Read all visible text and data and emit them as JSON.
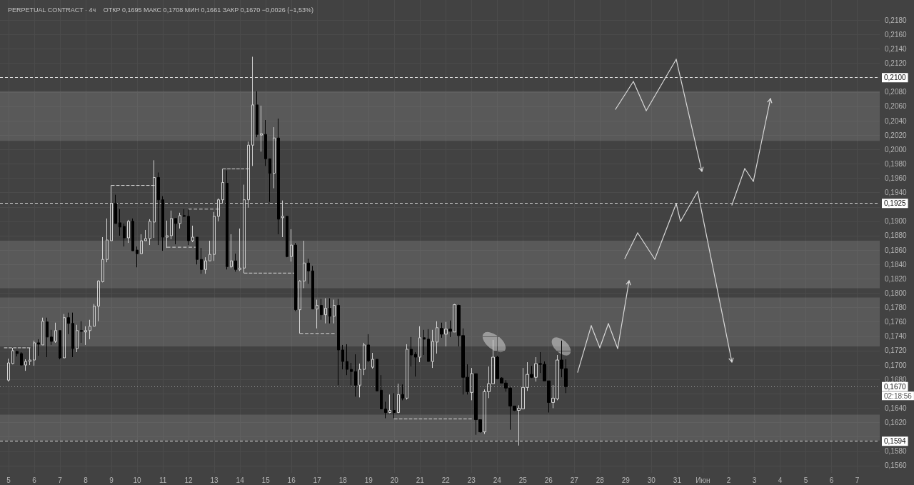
{
  "chart_data": {
    "type": "candlestick",
    "title": "PERPETUAL CONTRACT · 4ч",
    "subtitle": "ОТКР 0,1695 МАКС 0,1708 МИН 0,1661 ЗАКР 0,1670 −0,0026 (−1,53%)",
    "annotations": [
      "02:18:56"
    ],
    "x": [
      "--05-05T00:00",
      "--05-05T04:00",
      "--05-05T08:00",
      "--05-05T12:00",
      "--05-05T16:00",
      "--05-05T20:00",
      "--05-06T00:00",
      "--05-06T04:00",
      "--05-06T08:00",
      "--05-06T12:00",
      "--05-06T16:00",
      "--05-06T20:00",
      "--05-07T00:00",
      "--05-07T04:00",
      "--05-07T08:00",
      "--05-07T12:00",
      "--05-07T16:00",
      "--05-07T20:00",
      "--05-08T00:00",
      "--05-08T04:00",
      "--05-08T08:00",
      "--05-08T12:00",
      "--05-08T16:00",
      "--05-08T20:00",
      "--05-09T00:00",
      "--05-09T04:00",
      "--05-09T08:00",
      "--05-09T12:00",
      "--05-09T16:00",
      "--05-09T20:00",
      "--05-10T00:00",
      "--05-10T04:00",
      "--05-10T08:00",
      "--05-10T12:00",
      "--05-10T16:00",
      "--05-10T20:00",
      "--05-11T00:00",
      "--05-11T04:00",
      "--05-11T08:00",
      "--05-11T12:00",
      "--05-11T16:00",
      "--05-11T20:00",
      "--05-12T00:00",
      "--05-12T04:00",
      "--05-12T08:00",
      "--05-12T12:00",
      "--05-12T16:00",
      "--05-12T20:00",
      "--05-13T00:00",
      "--05-13T04:00",
      "--05-13T08:00",
      "--05-13T12:00",
      "--05-13T16:00",
      "--05-13T20:00",
      "--05-14T00:00",
      "--05-14T04:00",
      "--05-14T08:00",
      "--05-14T12:00",
      "--05-14T16:00",
      "--05-14T20:00",
      "--05-15T00:00",
      "--05-15T04:00",
      "--05-15T08:00",
      "--05-15T12:00",
      "--05-15T16:00",
      "--05-15T20:00",
      "--05-16T00:00",
      "--05-16T04:00",
      "--05-16T08:00",
      "--05-16T12:00",
      "--05-16T16:00",
      "--05-16T20:00",
      "--05-17T00:00",
      "--05-17T04:00",
      "--05-17T08:00",
      "--05-17T12:00",
      "--05-17T16:00",
      "--05-17T20:00",
      "--05-18T00:00",
      "--05-18T04:00",
      "--05-18T08:00",
      "--05-18T12:00",
      "--05-18T16:00",
      "--05-18T20:00",
      "--05-19T00:00",
      "--05-19T04:00",
      "--05-19T08:00",
      "--05-19T12:00",
      "--05-19T16:00",
      "--05-19T20:00",
      "--05-20T00:00",
      "--05-20T04:00",
      "--05-20T08:00",
      "--05-20T12:00",
      "--05-20T16:00",
      "--05-20T20:00",
      "--05-21T00:00",
      "--05-21T04:00",
      "--05-21T08:00",
      "--05-21T12:00",
      "--05-21T16:00",
      "--05-21T20:00",
      "--05-22T00:00",
      "--05-22T04:00",
      "--05-22T08:00",
      "--05-22T12:00",
      "--05-22T16:00",
      "--05-22T20:00",
      "--05-23T00:00",
      "--05-23T04:00",
      "--05-23T08:00",
      "--05-23T12:00",
      "--05-23T16:00",
      "--05-23T20:00",
      "--05-24T00:00",
      "--05-24T04:00",
      "--05-24T08:00",
      "--05-24T12:00",
      "--05-24T16:00",
      "--05-24T20:00",
      "--05-25T00:00",
      "--05-25T04:00",
      "--05-25T08:00",
      "--05-25T12:00",
      "--05-25T16:00",
      "--05-25T20:00",
      "--05-26T00:00",
      "--05-26T04:00",
      "--05-26T08:00",
      "--05-26T12:00",
      "--05-26T16:00"
    ],
    "ohlc": [
      [
        0.1679,
        0.1709,
        0.1677,
        0.1703
      ],
      [
        0.1702,
        0.1724,
        0.1701,
        0.172
      ],
      [
        0.1719,
        0.172,
        0.1712,
        0.1716
      ],
      [
        0.1716,
        0.1718,
        0.17,
        0.17
      ],
      [
        0.17,
        0.1708,
        0.1692,
        0.1705
      ],
      [
        0.1705,
        0.1724,
        0.17,
        0.1707
      ],
      [
        0.1707,
        0.1734,
        0.1699,
        0.1731
      ],
      [
        0.1731,
        0.1736,
        0.1713,
        0.1729
      ],
      [
        0.1728,
        0.1766,
        0.1728,
        0.1761
      ],
      [
        0.176,
        0.1766,
        0.1711,
        0.1739
      ],
      [
        0.1739,
        0.1749,
        0.1728,
        0.1733
      ],
      [
        0.1733,
        0.1759,
        0.1731,
        0.1748
      ],
      [
        0.1748,
        0.1748,
        0.1708,
        0.171
      ],
      [
        0.171,
        0.1771,
        0.171,
        0.1766
      ],
      [
        0.1766,
        0.1773,
        0.1743,
        0.1758
      ],
      [
        0.1758,
        0.1773,
        0.1711,
        0.1723
      ],
      [
        0.1723,
        0.1756,
        0.1718,
        0.1748
      ],
      [
        0.1748,
        0.1761,
        0.1731,
        0.1747
      ],
      [
        0.1746,
        0.1754,
        0.1728,
        0.1748
      ],
      [
        0.1748,
        0.1763,
        0.1736,
        0.1754
      ],
      [
        0.1754,
        0.1785,
        0.1754,
        0.1782
      ],
      [
        0.1782,
        0.1818,
        0.1761,
        0.1817
      ],
      [
        0.1816,
        0.1878,
        0.1815,
        0.1847
      ],
      [
        0.1847,
        0.1904,
        0.1843,
        0.1874
      ],
      [
        0.1873,
        0.195,
        0.1873,
        0.1925
      ],
      [
        0.1925,
        0.1937,
        0.1897,
        0.1897
      ],
      [
        0.1898,
        0.1917,
        0.188,
        0.1892
      ],
      [
        0.1893,
        0.1897,
        0.1865,
        0.1877
      ],
      [
        0.1877,
        0.1902,
        0.187,
        0.19
      ],
      [
        0.19,
        0.1904,
        0.1859,
        0.1859
      ],
      [
        0.186,
        0.1865,
        0.1836,
        0.1855
      ],
      [
        0.1855,
        0.1882,
        0.1855,
        0.1873
      ],
      [
        0.1873,
        0.1888,
        0.1873,
        0.1876
      ],
      [
        0.1876,
        0.1903,
        0.1867,
        0.19
      ],
      [
        0.1899,
        0.1985,
        0.1877,
        0.1961
      ],
      [
        0.1961,
        0.1968,
        0.1867,
        0.193
      ],
      [
        0.193,
        0.1935,
        0.1859,
        0.1878
      ],
      [
        0.1878,
        0.1901,
        0.1863,
        0.188
      ],
      [
        0.188,
        0.1915,
        0.1875,
        0.1904
      ],
      [
        0.1904,
        0.1904,
        0.1868,
        0.1897
      ],
      [
        0.1897,
        0.1912,
        0.189,
        0.1908
      ],
      [
        0.1908,
        0.1917,
        0.1906,
        0.1907
      ],
      [
        0.1907,
        0.1917,
        0.1867,
        0.1873
      ],
      [
        0.1873,
        0.1894,
        0.1871,
        0.1878
      ],
      [
        0.1878,
        0.1878,
        0.184,
        0.1847
      ],
      [
        0.1847,
        0.1863,
        0.1827,
        0.1833
      ],
      [
        0.1833,
        0.185,
        0.1827,
        0.1845
      ],
      [
        0.1845,
        0.1873,
        0.1845,
        0.1854
      ],
      [
        0.1854,
        0.1913,
        0.1845,
        0.1907
      ],
      [
        0.1907,
        0.1932,
        0.19,
        0.193
      ],
      [
        0.193,
        0.1973,
        0.1925,
        0.1954
      ],
      [
        0.1953,
        0.1971,
        0.1833,
        0.1837
      ],
      [
        0.1837,
        0.1882,
        0.1835,
        0.1845
      ],
      [
        0.1845,
        0.1855,
        0.183,
        0.1833
      ],
      [
        0.1833,
        0.189,
        0.1831,
        0.1835
      ],
      [
        0.1835,
        0.1951,
        0.1828,
        0.193
      ],
      [
        0.193,
        0.2011,
        0.1919,
        0.2006
      ],
      [
        0.2006,
        0.2129,
        0.1977,
        0.2062
      ],
      [
        0.2062,
        0.2081,
        0.2017,
        0.2021
      ],
      [
        0.202,
        0.2061,
        0.1997,
        0.2022
      ],
      [
        0.2021,
        0.2041,
        0.1977,
        0.1987
      ],
      [
        0.1987,
        0.1987,
        0.1927,
        0.1967
      ],
      [
        0.1967,
        0.2031,
        0.1946,
        0.2016
      ],
      [
        0.2016,
        0.2043,
        0.1882,
        0.1903
      ],
      [
        0.1905,
        0.1929,
        0.1878,
        0.1907
      ],
      [
        0.1907,
        0.1907,
        0.185,
        0.1851
      ],
      [
        0.1851,
        0.1889,
        0.1844,
        0.1867
      ],
      [
        0.1867,
        0.187,
        0.1775,
        0.1777
      ],
      [
        0.1777,
        0.1818,
        0.1744,
        0.1817
      ],
      [
        0.1817,
        0.1873,
        0.1807,
        0.1842
      ],
      [
        0.1842,
        0.1848,
        0.1813,
        0.1831
      ],
      [
        0.1831,
        0.1838,
        0.1778,
        0.1778
      ],
      [
        0.1778,
        0.1791,
        0.1751,
        0.1783
      ],
      [
        0.1783,
        0.1792,
        0.1763,
        0.177
      ],
      [
        0.177,
        0.1793,
        0.1758,
        0.1779
      ],
      [
        0.1779,
        0.1793,
        0.1758,
        0.1768
      ],
      [
        0.1768,
        0.1791,
        0.1758,
        0.1783
      ],
      [
        0.1783,
        0.1792,
        0.1672,
        0.1721
      ],
      [
        0.1721,
        0.1728,
        0.1694,
        0.1705
      ],
      [
        0.1705,
        0.1729,
        0.1686,
        0.1694
      ],
      [
        0.1694,
        0.1703,
        0.1672,
        0.1691
      ],
      [
        0.1691,
        0.1715,
        0.1656,
        0.1672
      ],
      [
        0.1672,
        0.1702,
        0.1655,
        0.1694
      ],
      [
        0.1694,
        0.1731,
        0.1686,
        0.1728
      ],
      [
        0.1728,
        0.1743,
        0.1704,
        0.1706
      ],
      [
        0.1697,
        0.1717,
        0.1695,
        0.1708
      ],
      [
        0.1708,
        0.1708,
        0.1664,
        0.1664
      ],
      [
        0.1665,
        0.1686,
        0.1639,
        0.1639
      ],
      [
        0.1639,
        0.1649,
        0.1626,
        0.1634
      ],
      [
        0.1634,
        0.1659,
        0.1633,
        0.1637
      ],
      [
        0.1637,
        0.1661,
        0.1626,
        0.1634
      ],
      [
        0.1634,
        0.1674,
        0.1633,
        0.1659
      ],
      [
        0.1659,
        0.1673,
        0.1651,
        0.1654
      ],
      [
        0.1654,
        0.1729,
        0.1652,
        0.1722
      ],
      [
        0.1722,
        0.1739,
        0.1698,
        0.1714
      ],
      [
        0.1715,
        0.1718,
        0.1684,
        0.1711
      ],
      [
        0.1711,
        0.1754,
        0.1704,
        0.1738
      ],
      [
        0.1738,
        0.1749,
        0.1714,
        0.1736
      ],
      [
        0.1736,
        0.175,
        0.1705,
        0.1705
      ],
      [
        0.1705,
        0.1749,
        0.1696,
        0.1733
      ],
      [
        0.1732,
        0.1761,
        0.1716,
        0.1752
      ],
      [
        0.1751,
        0.1759,
        0.1738,
        0.1743
      ],
      [
        0.1743,
        0.176,
        0.1726,
        0.175
      ],
      [
        0.175,
        0.1762,
        0.1739,
        0.1747
      ],
      [
        0.1746,
        0.1785,
        0.1746,
        0.1784
      ],
      [
        0.1783,
        0.1784,
        0.1726,
        0.1741
      ],
      [
        0.1741,
        0.1751,
        0.1659,
        0.1683
      ],
      [
        0.1683,
        0.1701,
        0.1659,
        0.1663
      ],
      [
        0.1662,
        0.1696,
        0.1651,
        0.1688
      ],
      [
        0.1688,
        0.1688,
        0.1603,
        0.1624
      ],
      [
        0.1624,
        0.1624,
        0.1606,
        0.1607
      ],
      [
        0.1607,
        0.1666,
        0.1604,
        0.1663
      ],
      [
        0.1663,
        0.1698,
        0.1654,
        0.1674
      ],
      [
        0.1674,
        0.1735,
        0.1674,
        0.1711
      ],
      [
        0.1711,
        0.1713,
        0.1681,
        0.1681
      ],
      [
        0.1682,
        0.1683,
        0.1675,
        0.1675
      ],
      [
        0.1675,
        0.1679,
        0.1663,
        0.1668
      ],
      [
        0.1668,
        0.1669,
        0.161,
        0.1643
      ],
      [
        0.1643,
        0.1643,
        0.1636,
        0.1637
      ],
      [
        0.1637,
        0.1644,
        0.1588,
        0.164
      ],
      [
        0.1639,
        0.1696,
        0.1639,
        0.1669
      ],
      [
        0.1669,
        0.1704,
        0.1664,
        0.1687
      ],
      [
        0.1687,
        0.1699,
        0.1682,
        0.1683
      ],
      [
        0.1683,
        0.1711,
        0.1677,
        0.1702
      ],
      [
        0.1702,
        0.1718,
        0.1689,
        0.1701
      ],
      [
        0.1701,
        0.1705,
        0.1678,
        0.1678
      ],
      [
        0.1678,
        0.1678,
        0.1634,
        0.1648
      ],
      [
        0.1648,
        0.1672,
        0.164,
        0.1654
      ],
      [
        0.1653,
        0.1714,
        0.1651,
        0.1707
      ],
      [
        0.1707,
        0.1734,
        0.1683,
        0.1695
      ],
      [
        0.1695,
        0.1708,
        0.1661,
        0.167
      ]
    ],
    "series": [
      {
        "type": "line",
        "x": [
          "--05-04T20:00",
          "--05-05T20:00"
        ],
        "values": [
          0.1724,
          0.1724
        ],
        "color": "#dcdcdc"
      },
      {
        "type": "line",
        "x": [
          "--05-09T00:00",
          "--05-10T16:00"
        ],
        "values": [
          0.195,
          0.195
        ],
        "color": "#dcdcdc"
      },
      {
        "type": "line",
        "x": [
          "--05-11T04:00",
          "--05-12T08:00"
        ],
        "values": [
          0.1864,
          0.1864
        ],
        "color": "#dcdcdc"
      },
      {
        "type": "line",
        "x": [
          "--05-12T00:00",
          "--05-13T04:00"
        ],
        "values": [
          0.1917,
          0.1917
        ],
        "color": "#dcdcdc"
      },
      {
        "type": "line",
        "x": [
          "--05-13T08:00",
          "--05-14T08:00"
        ],
        "values": [
          0.1973,
          0.1973
        ],
        "color": "#dcdcdc"
      },
      {
        "type": "line",
        "x": [
          "--05-14T04:00",
          "--05-16T04:00"
        ],
        "values": [
          0.1828,
          0.1828
        ],
        "color": "#dcdcdc"
      },
      {
        "type": "line",
        "x": [
          "--05-16T08:00",
          "--05-17T16:00"
        ],
        "values": [
          0.1744,
          0.1744
        ],
        "color": "#dcdcdc"
      },
      {
        "type": "line",
        "x": [
          "--05-20T00:00",
          "--05-23T00:00"
        ],
        "values": [
          0.1625,
          0.1625
        ],
        "color": "#dcdcdc"
      }
    ],
    "line_style": "dashed",
    "marker": "none",
    "xlim": [
      "--05-04T16:00",
      "--06-07T21:00"
    ],
    "xticks": [
      {
        "value": "--05-05",
        "label": "5"
      },
      {
        "value": "--05-06",
        "label": "6"
      },
      {
        "value": "--05-07",
        "label": "7"
      },
      {
        "value": "--05-08",
        "label": "8"
      },
      {
        "value": "--05-09",
        "label": "9"
      },
      {
        "value": "--05-10",
        "label": "10"
      },
      {
        "value": "--05-11",
        "label": "11"
      },
      {
        "value": "--05-12",
        "label": "12"
      },
      {
        "value": "--05-13",
        "label": "13"
      },
      {
        "value": "--05-14",
        "label": "14"
      },
      {
        "value": "--05-15",
        "label": "15"
      },
      {
        "value": "--05-16",
        "label": "16"
      },
      {
        "value": "--05-17",
        "label": "17"
      },
      {
        "value": "--05-18",
        "label": "18"
      },
      {
        "value": "--05-19",
        "label": "19"
      },
      {
        "value": "--05-20",
        "label": "20"
      },
      {
        "value": "--05-21",
        "label": "21"
      },
      {
        "value": "--05-22",
        "label": "22"
      },
      {
        "value": "--05-23",
        "label": "23"
      },
      {
        "value": "--05-24",
        "label": "24"
      },
      {
        "value": "--05-25",
        "label": "25"
      },
      {
        "value": "--05-26",
        "label": "26"
      },
      {
        "value": "--05-27",
        "label": "27"
      },
      {
        "value": "--05-28",
        "label": "28"
      },
      {
        "value": "--05-29",
        "label": "29"
      },
      {
        "value": "--05-30",
        "label": "30"
      },
      {
        "value": "--05-31",
        "label": "31"
      },
      {
        "value": "--06-01",
        "label": "Июн"
      },
      {
        "value": "--06-02",
        "label": "2"
      },
      {
        "value": "--06-03",
        "label": "3"
      },
      {
        "value": "--06-04",
        "label": "4"
      },
      {
        "value": "--06-05",
        "label": "5"
      },
      {
        "value": "--06-06",
        "label": "6"
      },
      {
        "value": "--06-07",
        "label": "7"
      }
    ],
    "ylim": [
      0.155,
      0.2208
    ],
    "yticks": [
      {
        "value": 0.156,
        "label": "0,1560"
      },
      {
        "value": 0.158,
        "label": "0,1580"
      },
      {
        "value": 0.16,
        "label": null
      },
      {
        "value": 0.162,
        "label": "0,1620"
      },
      {
        "value": 0.164,
        "label": "0,1640"
      },
      {
        "value": 0.166,
        "label": null
      },
      {
        "value": 0.168,
        "label": "0,1680"
      },
      {
        "value": 0.17,
        "label": "0,1700"
      },
      {
        "value": 0.172,
        "label": "0,1720"
      },
      {
        "value": 0.174,
        "label": "0,1740"
      },
      {
        "value": 0.176,
        "label": "0,1760"
      },
      {
        "value": 0.178,
        "label": "0,1780"
      },
      {
        "value": 0.18,
        "label": "0,1800"
      },
      {
        "value": 0.182,
        "label": "0,1820"
      },
      {
        "value": 0.184,
        "label": "0,1840"
      },
      {
        "value": 0.186,
        "label": "0,1860"
      },
      {
        "value": 0.188,
        "label": "0,1880"
      },
      {
        "value": 0.19,
        "label": "0,1900"
      },
      {
        "value": 0.192,
        "label": null
      },
      {
        "value": 0.194,
        "label": "0,1940"
      },
      {
        "value": 0.196,
        "label": "0,1960"
      },
      {
        "value": 0.198,
        "label": "0,1980"
      },
      {
        "value": 0.2,
        "label": "0,2000"
      },
      {
        "value": 0.202,
        "label": "0,2020"
      },
      {
        "value": 0.204,
        "label": "0,2040"
      },
      {
        "value": 0.206,
        "label": "0,2060"
      },
      {
        "value": 0.208,
        "label": "0,2080"
      },
      {
        "value": 0.21,
        "label": null
      },
      {
        "value": 0.212,
        "label": "0,2120"
      },
      {
        "value": 0.214,
        "label": "0,2140"
      },
      {
        "value": 0.216,
        "label": "0,2160"
      },
      {
        "value": 0.218,
        "label": "0,2180"
      }
    ],
    "grid": true,
    "ref_lines": [
      {
        "axis": "y",
        "value": 0.21,
        "label": "0,2100",
        "color": "#dcdcdc",
        "line_style": "dashed"
      },
      {
        "axis": "y",
        "value": 0.1925,
        "label": "0,1925",
        "color": "#dcdcdc",
        "line_style": "dashed"
      },
      {
        "axis": "y",
        "value": 0.167,
        "label": "0,1670",
        "color": "#9a9a9a",
        "line_style": "dotted"
      },
      {
        "axis": "y",
        "value": 0.1594,
        "label": "0,1594",
        "color": "#dcdcdc",
        "line_style": "dashed"
      }
    ],
    "bands": [
      {
        "axis": "y",
        "from": 0.2012,
        "to": 0.2081,
        "color": "#595959"
      },
      {
        "axis": "y",
        "from": 0.1807,
        "to": 0.1873,
        "color": "#595959"
      },
      {
        "axis": "y",
        "from": 0.1726,
        "to": 0.1794,
        "color": "#595959"
      },
      {
        "axis": "y",
        "from": 0.1595,
        "to": 0.1631,
        "color": "#595959"
      }
    ]
  }
}
